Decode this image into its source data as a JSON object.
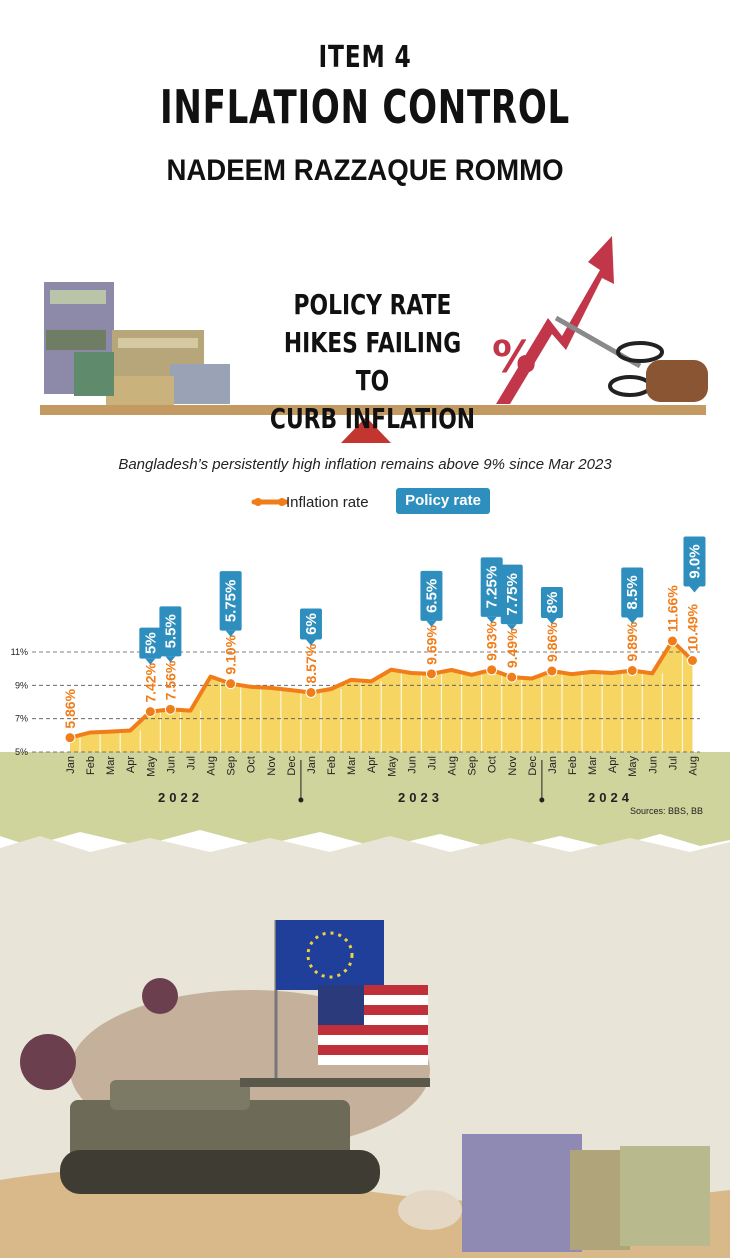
{
  "header": {
    "item": "ITEM 4",
    "title": "INFLATION CONTROL",
    "author": "NADEEM RAZZAQUE ROMMO"
  },
  "headline": [
    "POLICY RATE",
    "HIKES FAILING TO",
    "CURB INFLATION"
  ],
  "colors": {
    "line": "#f07d1a",
    "bar": "#f5d35a",
    "policy": "#2e8fbf",
    "ground": "#cfd49c"
  },
  "chart_data": {
    "type": "line",
    "title": "Bangladesh’s persistently high inflation remains above 9% since Mar 2023",
    "legend": {
      "inflation": "Inflation rate",
      "policy": "Policy rate"
    },
    "categories": [
      "Jan",
      "Feb",
      "Mar",
      "Apr",
      "May",
      "Jun",
      "Jul",
      "Aug",
      "Sep",
      "Oct",
      "Nov",
      "Dec",
      "Jan",
      "Feb",
      "Mar",
      "Apr",
      "May",
      "Jun",
      "Jul",
      "Aug",
      "Sep",
      "Oct",
      "Nov",
      "Dec",
      "Jan",
      "Feb",
      "Mar",
      "Apr",
      "May",
      "Jun",
      "Jul",
      "Aug"
    ],
    "years": [
      {
        "label": "2022",
        "from": 0,
        "to": 11
      },
      {
        "label": "2023",
        "from": 12,
        "to": 23
      },
      {
        "label": "2024",
        "from": 24,
        "to": 31
      }
    ],
    "ylim": [
      5,
      12
    ],
    "yticks": [
      {
        "v": 5,
        "label": "5%"
      },
      {
        "v": 7,
        "label": "7%"
      },
      {
        "v": 9,
        "label": "9%"
      },
      {
        "v": 11,
        "label": "11%"
      }
    ],
    "inflation": [
      5.86,
      6.17,
      6.22,
      6.29,
      7.42,
      7.56,
      7.48,
      9.52,
      9.1,
      8.91,
      8.85,
      8.71,
      8.57,
      8.78,
      9.33,
      9.24,
      9.94,
      9.74,
      9.69,
      9.92,
      9.63,
      9.93,
      9.49,
      9.41,
      9.86,
      9.67,
      9.81,
      9.74,
      9.89,
      9.72,
      11.66,
      10.49
    ],
    "inflation_labels": [
      {
        "i": 0,
        "label": "5.86%"
      },
      {
        "i": 4,
        "label": "7.42%"
      },
      {
        "i": 5,
        "label": "7.56%"
      },
      {
        "i": 8,
        "label": "9.10%"
      },
      {
        "i": 12,
        "label": "8.57%"
      },
      {
        "i": 18,
        "label": "9.69%"
      },
      {
        "i": 21,
        "label": "9.93%"
      },
      {
        "i": 22,
        "label": "9.49%"
      },
      {
        "i": 24,
        "label": "9.86%"
      },
      {
        "i": 28,
        "label": "9.89%"
      },
      {
        "i": 30,
        "label": "11.66%"
      },
      {
        "i": 31,
        "label": "10.49%"
      }
    ],
    "policy_rate": [
      {
        "i": 4,
        "label": "5%"
      },
      {
        "i": 5,
        "label": "5.5%"
      },
      {
        "i": 8,
        "label": "5.75%"
      },
      {
        "i": 12,
        "label": "6%"
      },
      {
        "i": 18,
        "label": "6.5%"
      },
      {
        "i": 21,
        "label": "7.25%"
      },
      {
        "i": 22,
        "label": "7.75%"
      },
      {
        "i": 24,
        "label": "8%"
      },
      {
        "i": 28,
        "label": "8.5%"
      },
      {
        "i": 31,
        "label": "9.0%"
      }
    ],
    "sources": "Sources: BBS, BB"
  }
}
